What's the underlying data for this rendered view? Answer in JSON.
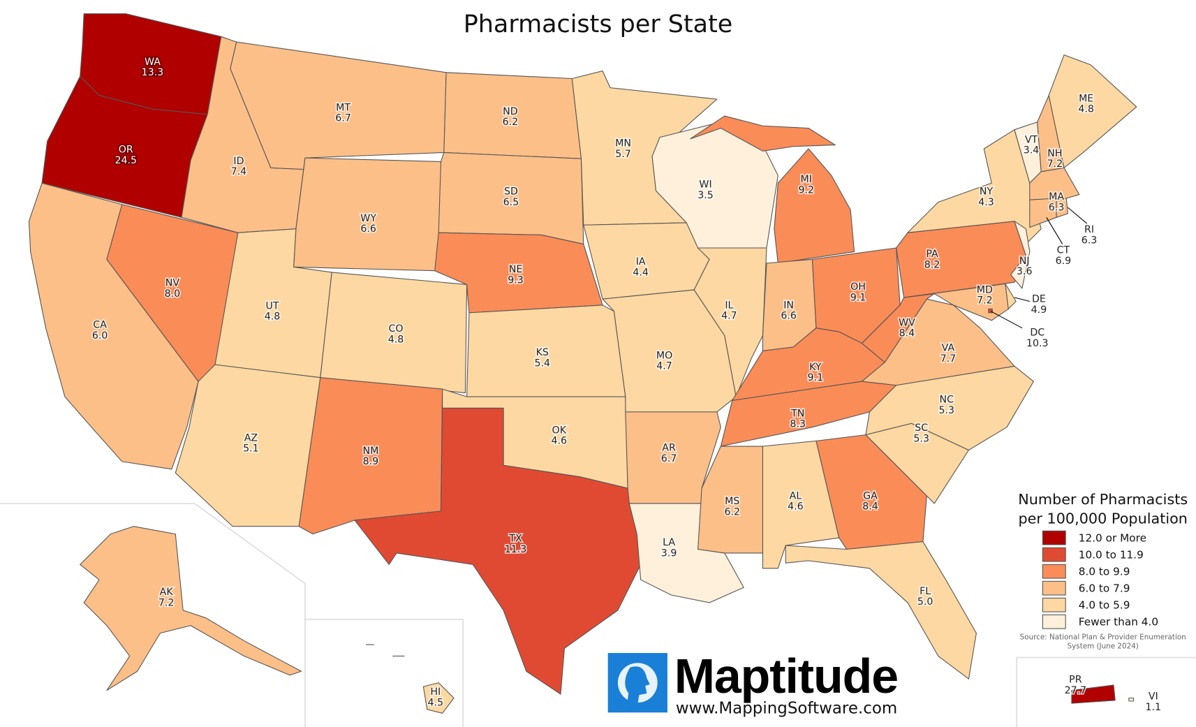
{
  "title": "Pharmacists per State",
  "legend": {
    "title_line1": "Number of Pharmacists",
    "title_line2": "per 100,000 Population",
    "classes": [
      {
        "label": "12.0 or More",
        "min": 12.0,
        "color": "#b00000"
      },
      {
        "label": "10.0 to 11.9",
        "min": 10.0,
        "color": "#e04a32"
      },
      {
        "label": "8.0 to 9.9",
        "min": 8.0,
        "color": "#fa8c58"
      },
      {
        "label": "6.0 to 7.9",
        "min": 6.0,
        "color": "#fcbf88"
      },
      {
        "label": "4.0 to 5.9",
        "min": 4.0,
        "color": "#fdd8a2"
      },
      {
        "label": "Fewer than 4.0",
        "min": 0,
        "color": "#fef0da"
      }
    ]
  },
  "source_line1": "Source: National Plan & Provider Enumeration",
  "source_line2": "System (June 2024)",
  "branding": {
    "name": "Maptitude",
    "url": "www.MappingSoftware.com"
  },
  "states": [
    {
      "abbr": "WA",
      "value": "13.3"
    },
    {
      "abbr": "OR",
      "value": "24.5"
    },
    {
      "abbr": "CA",
      "value": "6.0"
    },
    {
      "abbr": "NV",
      "value": "8.0"
    },
    {
      "abbr": "ID",
      "value": "7.4"
    },
    {
      "abbr": "MT",
      "value": "6.7"
    },
    {
      "abbr": "WY",
      "value": "6.6"
    },
    {
      "abbr": "UT",
      "value": "4.8"
    },
    {
      "abbr": "CO",
      "value": "4.8"
    },
    {
      "abbr": "AZ",
      "value": "5.1"
    },
    {
      "abbr": "NM",
      "value": "8.9"
    },
    {
      "abbr": "ND",
      "value": "6.2"
    },
    {
      "abbr": "SD",
      "value": "6.5"
    },
    {
      "abbr": "NE",
      "value": "9.3"
    },
    {
      "abbr": "KS",
      "value": "5.4"
    },
    {
      "abbr": "OK",
      "value": "4.6"
    },
    {
      "abbr": "TX",
      "value": "11.3"
    },
    {
      "abbr": "MN",
      "value": "5.7"
    },
    {
      "abbr": "IA",
      "value": "4.4"
    },
    {
      "abbr": "MO",
      "value": "4.7"
    },
    {
      "abbr": "AR",
      "value": "6.7"
    },
    {
      "abbr": "LA",
      "value": "3.9"
    },
    {
      "abbr": "WI",
      "value": "3.5"
    },
    {
      "abbr": "IL",
      "value": "4.7"
    },
    {
      "abbr": "MI",
      "value": "9.2"
    },
    {
      "abbr": "IN",
      "value": "6.6"
    },
    {
      "abbr": "OH",
      "value": "9.1"
    },
    {
      "abbr": "KY",
      "value": "9.1"
    },
    {
      "abbr": "TN",
      "value": "8.3"
    },
    {
      "abbr": "MS",
      "value": "6.2"
    },
    {
      "abbr": "AL",
      "value": "4.6"
    },
    {
      "abbr": "GA",
      "value": "8.4"
    },
    {
      "abbr": "FL",
      "value": "5.0"
    },
    {
      "abbr": "SC",
      "value": "5.3"
    },
    {
      "abbr": "NC",
      "value": "5.3"
    },
    {
      "abbr": "VA",
      "value": "7.7"
    },
    {
      "abbr": "WV",
      "value": "8.4"
    },
    {
      "abbr": "PA",
      "value": "8.2"
    },
    {
      "abbr": "NY",
      "value": "4.3"
    },
    {
      "abbr": "NJ",
      "value": "3.6"
    },
    {
      "abbr": "MD",
      "value": "7.2"
    },
    {
      "abbr": "DE",
      "value": "4.9"
    },
    {
      "abbr": "DC",
      "value": "10.3"
    },
    {
      "abbr": "VT",
      "value": "3.4"
    },
    {
      "abbr": "NH",
      "value": "7.2"
    },
    {
      "abbr": "ME",
      "value": "4.8"
    },
    {
      "abbr": "MA",
      "value": "6.3"
    },
    {
      "abbr": "CT",
      "value": "6.9"
    },
    {
      "abbr": "RI",
      "value": "6.3"
    },
    {
      "abbr": "AK",
      "value": "7.2"
    },
    {
      "abbr": "HI",
      "value": "4.5"
    },
    {
      "abbr": "PR",
      "value": "27.7"
    },
    {
      "abbr": "VI",
      "value": "1.1"
    }
  ]
}
